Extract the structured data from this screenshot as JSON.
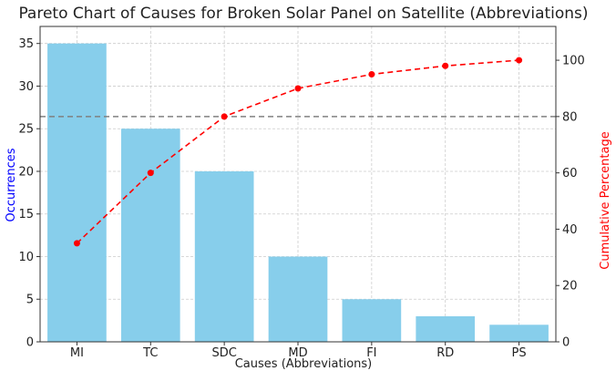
{
  "chart_data": {
    "type": "bar",
    "title": "Pareto Chart of Causes for Broken Solar Panel on Satellite (Abbreviations)",
    "xlabel": "Causes (Abbreviations)",
    "ylabel": "Occurrences",
    "y2label": "Cumulative Percentage",
    "categories": [
      "MI",
      "TC",
      "SDC",
      "MD",
      "FI",
      "RD",
      "PS"
    ],
    "series": [
      {
        "name": "Occurrences",
        "type": "bar",
        "axis": "left",
        "color": "#87ceeb",
        "values": [
          35,
          25,
          20,
          10,
          5,
          3,
          2
        ]
      },
      {
        "name": "Cumulative Percentage",
        "type": "line",
        "axis": "right",
        "style": "dashed",
        "marker": "circle",
        "color": "#ff0000",
        "values": [
          35,
          60,
          80,
          90,
          95,
          98,
          100
        ]
      }
    ],
    "ylim": [
      0,
      37
    ],
    "y2lim": [
      0,
      112
    ],
    "yticks": [
      0,
      5,
      10,
      15,
      20,
      25,
      30,
      35
    ],
    "y2ticks": [
      0,
      20,
      40,
      60,
      80,
      100
    ],
    "reference_line": {
      "axis": "right",
      "value": 80,
      "style": "dashed",
      "color": "#808080"
    },
    "grid": true,
    "ylabel_color": "#0000ff",
    "y2label_color": "#ff0000"
  }
}
